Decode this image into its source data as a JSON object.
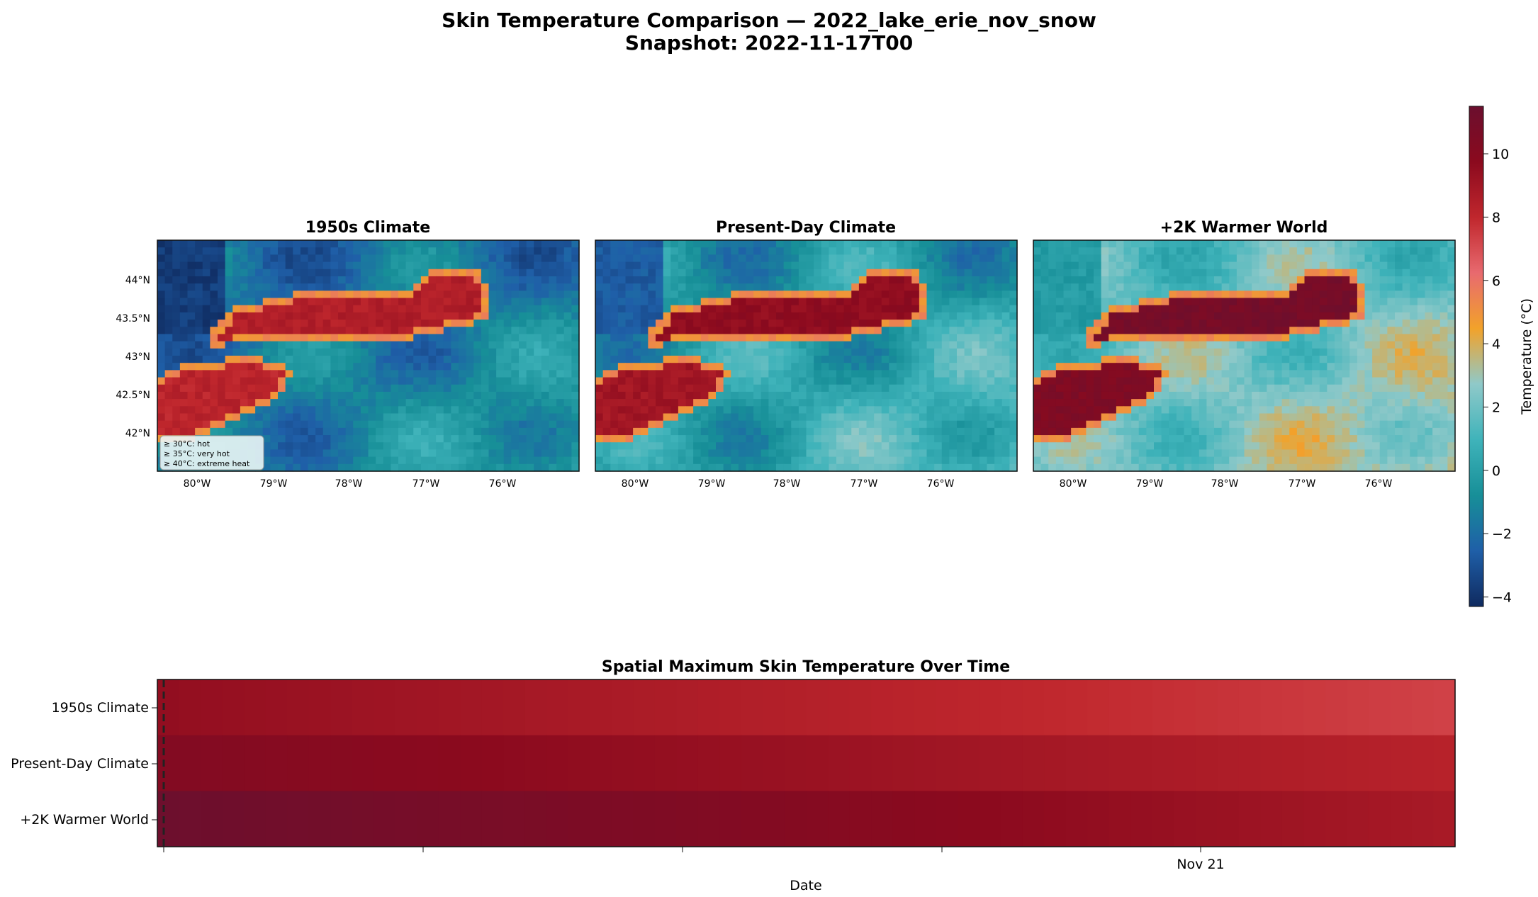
{
  "figure": {
    "title_line1": "Skin Temperature Comparison — 2022_lake_erie_nov_snow",
    "title_line2": "Snapshot: 2022-11-17T00"
  },
  "colors": {
    "colormap": [
      "#0f2a5f",
      "#1f5fa8",
      "#178f98",
      "#3fb3ba",
      "#8fc9c9",
      "#f2a22a",
      "#e86a6f",
      "#c0272d",
      "#8b0a1e",
      "#6b0f2e"
    ],
    "colormap_range": [
      -4.3,
      11.5
    ],
    "dashed_marker": "#222222",
    "map_border": "#333333"
  },
  "chart_data": [
    {
      "type": "heatmap",
      "title": "1950s Climate",
      "x_ticks": [
        "80°W",
        "79°W",
        "78°W",
        "77°W",
        "76°W"
      ],
      "y_ticks": [
        "44°N",
        "43.5°N",
        "43°N",
        "42.5°N",
        "42°N"
      ],
      "x_range_lon": [
        -80.5,
        -75.0
      ],
      "y_range_lat": [
        41.5,
        44.5
      ],
      "lake_erie_temp_c": 8.2,
      "lake_ontario_temp_c": 8.5,
      "land_temp_range_c": [
        -4.0,
        2.0
      ],
      "legend": [
        "≥ 30°C: hot",
        "≥ 35°C: very hot",
        "≥ 40°C: extreme heat"
      ]
    },
    {
      "type": "heatmap",
      "title": "Present-Day Climate",
      "x_ticks": [
        "80°W",
        "79°W",
        "78°W",
        "77°W",
        "76°W"
      ],
      "x_range_lon": [
        -80.5,
        -75.0
      ],
      "y_range_lat": [
        41.5,
        44.5
      ],
      "lake_erie_temp_c": 9.0,
      "lake_ontario_temp_c": 9.6,
      "land_temp_range_c": [
        -3.0,
        4.0
      ]
    },
    {
      "type": "heatmap",
      "title": "+2K Warmer World",
      "x_ticks": [
        "80°W",
        "79°W",
        "78°W",
        "77°W",
        "76°W"
      ],
      "x_range_lon": [
        -80.5,
        -75.0
      ],
      "y_range_lat": [
        41.5,
        44.5
      ],
      "lake_erie_temp_c": 10.4,
      "lake_ontario_temp_c": 10.9,
      "land_temp_range_c": [
        -0.5,
        5.5
      ]
    },
    {
      "type": "heatmap",
      "title": "Spatial Maximum Skin Temperature Over Time",
      "xlabel": "Date",
      "x_tick_label": "Nov 21",
      "rows": [
        "1950s Climate",
        "Present-Day Climate",
        "+2K Warmer World"
      ],
      "series": [
        {
          "name": "1950s Climate",
          "start": 9.5,
          "end": 7.3
        },
        {
          "name": "Present-Day Climate",
          "start": 10.2,
          "end": 8.3
        },
        {
          "name": "+2K Warmer World",
          "start": 11.4,
          "end": 8.8
        }
      ],
      "snapshot_marker": "2022-11-17T00"
    },
    {
      "type": "colorbar",
      "label": "Temperature (°C)",
      "ticks": [
        -4,
        -2,
        0,
        2,
        4,
        6,
        8,
        10
      ],
      "range": [
        -4.3,
        11.5
      ]
    }
  ]
}
